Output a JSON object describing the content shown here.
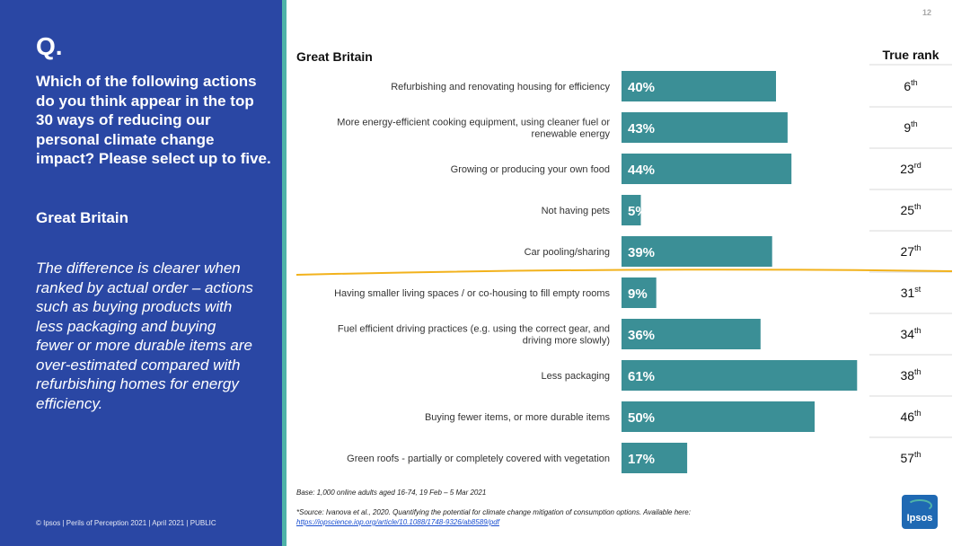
{
  "page_number": "12",
  "sidebar": {
    "q_mark": "Q.",
    "question": "Which of the following actions do you think appear in the top 30 ways of reducing our personal climate change impact? Please select up to five.",
    "region": "Great Britain",
    "commentary": "The difference is clearer when ranked by actual order – actions such as buying products with less packaging and buying fewer or more durable items are over-estimated compared with refurbishing homes for energy efficiency.",
    "footer": "© Ipsos | Perils of Perception 2021 | April 2021 | PUBLIC"
  },
  "colors": {
    "sidebar": "#2a47a4",
    "bar": "#3b8f96",
    "divider": "#f2b21c",
    "stripe": "#4fb3a8"
  },
  "chart_data": {
    "type": "bar",
    "orientation": "horizontal",
    "title": "Great Britain",
    "rank_header": "True rank",
    "xlim": [
      0,
      100
    ],
    "categories": [
      [
        "Refurbishing and renovating housing for efficiency"
      ],
      [
        "More energy-efficient cooking equipment, using cleaner fuel or",
        "renewable energy"
      ],
      [
        "Growing or producing your own food"
      ],
      [
        "Not having pets"
      ],
      [
        "Car pooling/sharing"
      ],
      [
        "Having smaller living spaces / or co-housing to fill empty rooms"
      ],
      [
        "Fuel efficient driving practices (e.g. using the correct gear, and",
        "driving more slowly)"
      ],
      [
        "Less packaging"
      ],
      [
        "Buying fewer items, or more durable items"
      ],
      [
        "Green roofs - partially or completely covered with vegetation"
      ]
    ],
    "values": [
      40,
      43,
      44,
      5,
      39,
      9,
      36,
      61,
      50,
      17
    ],
    "value_labels": [
      "40%",
      "43%",
      "44%",
      "5%",
      "39%",
      "9%",
      "36%",
      "61%",
      "50%",
      "17%"
    ],
    "true_rank": [
      "6",
      "9",
      "23",
      "25",
      "27",
      "31",
      "34",
      "38",
      "46",
      "57"
    ],
    "rank_suffix": [
      "th",
      "th",
      "rd",
      "th",
      "th",
      "st",
      "th",
      "th",
      "th",
      "th"
    ],
    "top30_cutoff_after_index": 4
  },
  "notes": {
    "base": "Base: 1,000 online adults aged 16-74,  19 Feb – 5 Mar 2021",
    "source": "*Source: Ivanova et al., 2020. Quantifying the potential for climate change mitigation of consumption options. Available here:",
    "link": "https://iopscience.iop.org/article/10.1088/1748-9326/ab8589/pdf"
  },
  "logo": {
    "text": "Ipsos"
  }
}
